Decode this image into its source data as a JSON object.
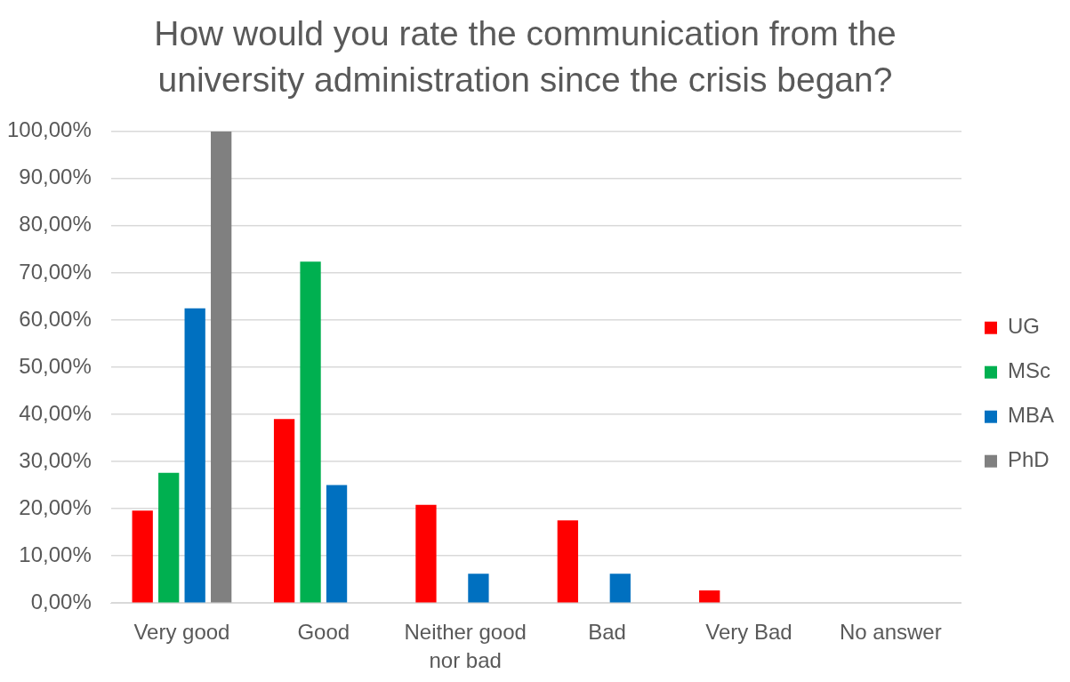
{
  "chart_data": {
    "type": "bar",
    "title": "How would you rate the communication from the university administration since the crisis began?",
    "categories": [
      "Very good",
      "Good",
      "Neither good nor bad",
      "Bad",
      "Very Bad",
      "No answer"
    ],
    "series": [
      {
        "name": "UG",
        "color": "#ff0000",
        "values": [
          19.6,
          39.0,
          20.8,
          17.5,
          2.7,
          0
        ]
      },
      {
        "name": "MSc",
        "color": "#00b050",
        "values": [
          27.6,
          72.4,
          0,
          0,
          0,
          0
        ]
      },
      {
        "name": "MBA",
        "color": "#0070c0",
        "values": [
          62.5,
          25,
          6.2,
          6.2,
          0,
          0
        ]
      },
      {
        "name": "PhD",
        "color": "#808080",
        "values": [
          100,
          0,
          0,
          0,
          0,
          0
        ]
      }
    ],
    "ylim": [
      0,
      100
    ],
    "yticks": [
      {
        "value": 0,
        "label": "0,00%"
      },
      {
        "value": 10,
        "label": "10,00%"
      },
      {
        "value": 20,
        "label": "20,00%"
      },
      {
        "value": 30,
        "label": "30,00%"
      },
      {
        "value": 40,
        "label": "40,00%"
      },
      {
        "value": 50,
        "label": "50,00%"
      },
      {
        "value": 60,
        "label": "60,00%"
      },
      {
        "value": 70,
        "label": "70,00%"
      },
      {
        "value": 80,
        "label": "80,00%"
      },
      {
        "value": 90,
        "label": "90,00%"
      },
      {
        "value": 100,
        "label": "100,00%"
      }
    ],
    "grid": "y",
    "legend": "right"
  }
}
